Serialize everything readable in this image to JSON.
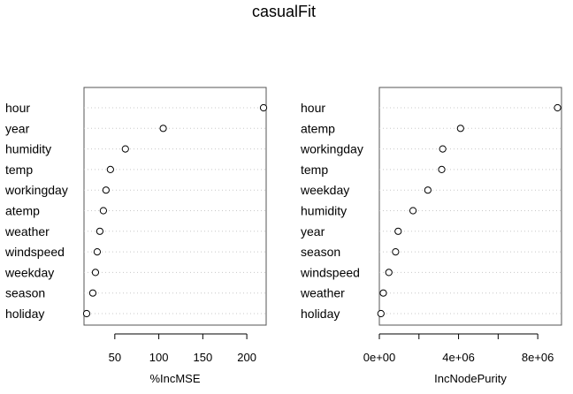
{
  "chart_data": [
    {
      "type": "dotchart",
      "title": "casualFit",
      "xlabel": "%IncMSE",
      "ylabel": "",
      "xlim": [
        15,
        222
      ],
      "xticks": [
        50,
        100,
        150,
        200
      ],
      "xtick_labels": [
        "50",
        "100",
        "150",
        "200"
      ],
      "grid": "dotted horizontal lines",
      "categories": [
        "hour",
        "year",
        "humidity",
        "temp",
        "workingday",
        "atemp",
        "weather",
        "windspeed",
        "weekday",
        "season",
        "holiday"
      ],
      "values": [
        219,
        105,
        62,
        45,
        40,
        37,
        33,
        30,
        28,
        25,
        18
      ]
    },
    {
      "type": "dotchart",
      "xlabel": "IncNodePurity",
      "ylabel": "",
      "xlim": [
        0,
        9200000
      ],
      "xticks": [
        0,
        2000000,
        4000000,
        6000000,
        8000000
      ],
      "xtick_labels": [
        "0e+00",
        "",
        "4e+06",
        "",
        "8e+06"
      ],
      "grid": "dotted horizontal lines",
      "categories": [
        "hour",
        "atemp",
        "workingday",
        "temp",
        "weekday",
        "humidity",
        "year",
        "season",
        "windspeed",
        "weather",
        "holiday"
      ],
      "values": [
        9000000,
        4100000,
        3200000,
        3150000,
        2450000,
        1700000,
        950000,
        820000,
        480000,
        200000,
        80000
      ]
    }
  ]
}
